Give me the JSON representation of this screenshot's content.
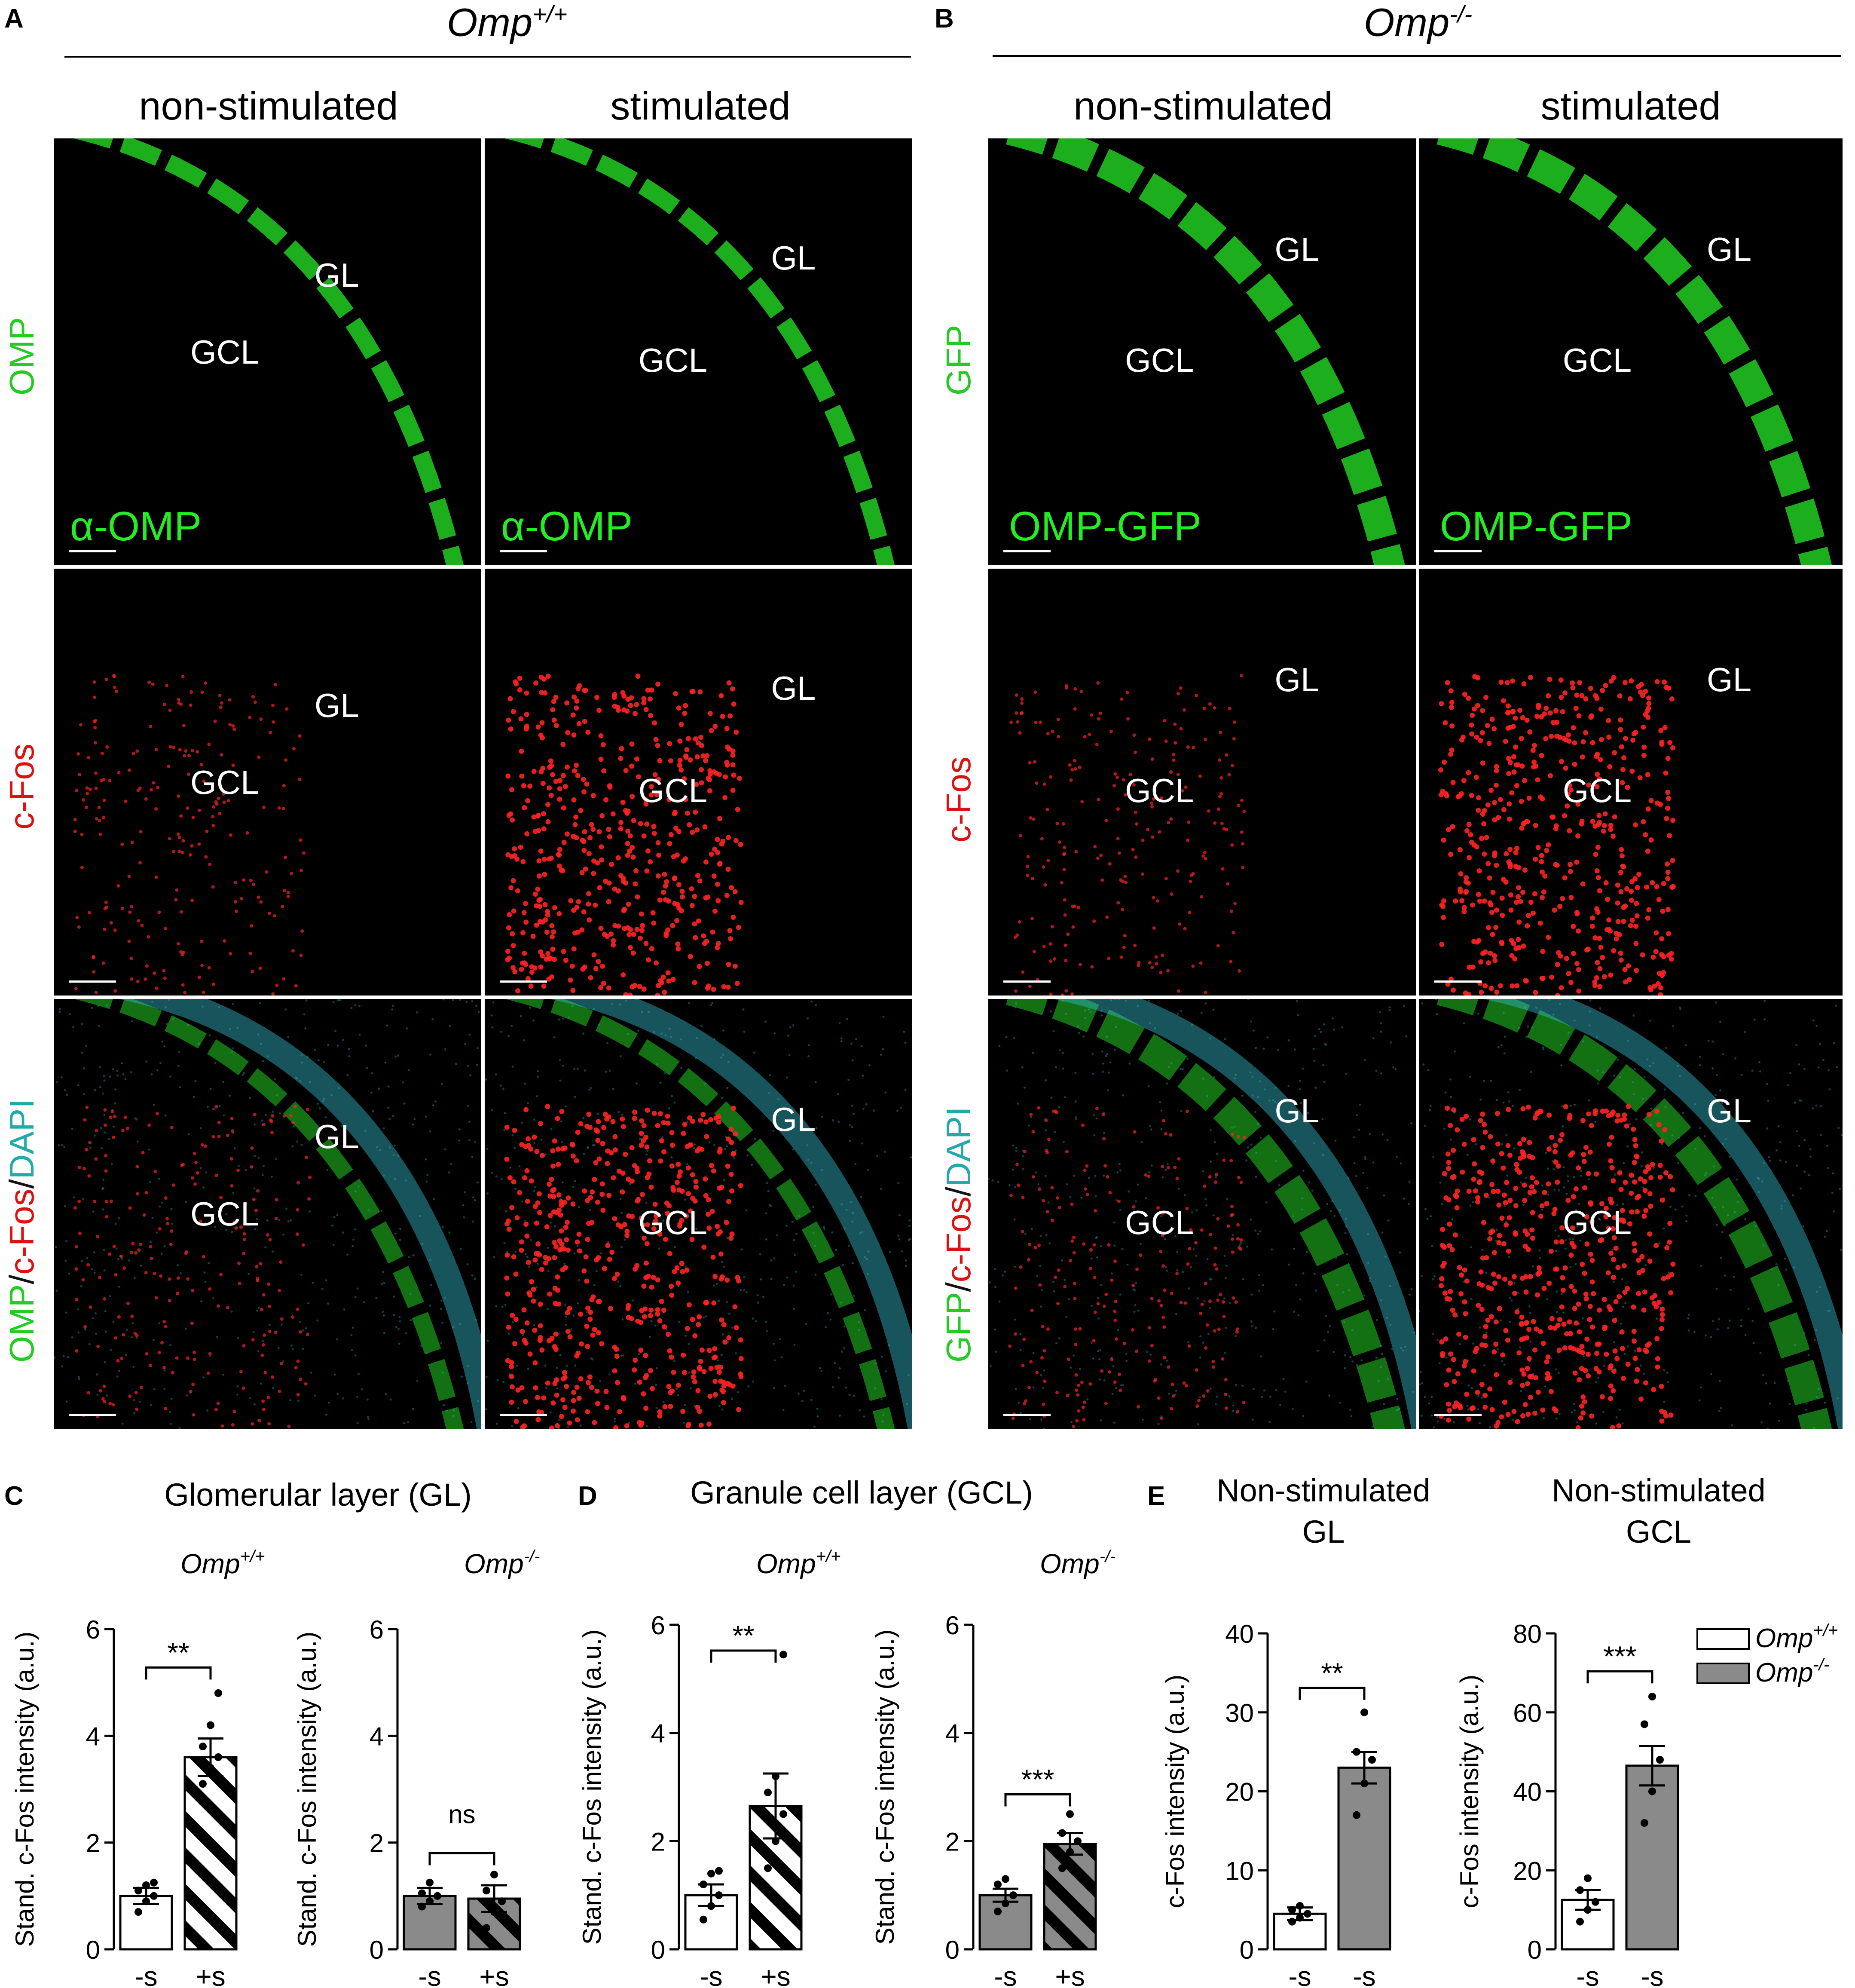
{
  "panel_letters": [
    "A",
    "B",
    "C",
    "D",
    "E"
  ],
  "panel_a": {
    "genotype": "Omp",
    "genotype_sup": "+/+",
    "col_titles": [
      "non-stimulated",
      "stimulated"
    ]
  },
  "panel_b": {
    "genotype": "Omp",
    "genotype_sup": "-/-",
    "col_titles": [
      "non-stimulated",
      "stimulated"
    ]
  },
  "row_labels_a": {
    "omp": "OMP",
    "cfos": "c-Fos",
    "merge_p1": "OMP",
    "merge_sep1": "/",
    "merge_p2": "c-Fos",
    "merge_sep2": "/",
    "merge_p3": "DAPI"
  },
  "row_labels_b": {
    "gfp": "GFP",
    "cfos": "c-Fos",
    "merge_p1": "GFP",
    "merge_sep1": "/",
    "merge_p2": "c-Fos",
    "merge_sep2": "/",
    "merge_p3": "DAPI"
  },
  "micro_labels": {
    "gl": "GL",
    "gcl": "GCL"
  },
  "micro_tags": {
    "a_omp": "α-OMP",
    "b_gfp": "OMP-GFP"
  },
  "colors": {
    "omp_green": "#22cc22",
    "cfos_red": "#ff2222",
    "dapi_cyan": "#33bbcc",
    "omp_ko_bar": "#8a8a8a"
  },
  "section_titles": {
    "c": "Glomerular layer (GL)",
    "d": "Granule cell layer (GCL)",
    "e1_l1": "Non-stimulated",
    "e1_l2": "GL",
    "e2_l1": "Non-stimulated",
    "e2_l2": "GCL"
  },
  "legend": [
    {
      "name": "Omp",
      "sup": "+/+",
      "fill": "#ffffff"
    },
    {
      "name": "Omp",
      "sup": "-/-",
      "fill": "#8a8a8a"
    }
  ],
  "chart_data": [
    {
      "panel": "C",
      "type": "bar",
      "title": "Omp+/+",
      "ylabel": "Stand. c-Fos intensity (a.u.)",
      "ylim": [
        0,
        6
      ],
      "yticks": [
        0,
        2,
        4,
        6
      ],
      "categories": [
        "-s",
        "+s"
      ],
      "values": [
        1.0,
        3.6
      ],
      "errors": [
        0.15,
        0.35
      ],
      "points": [
        [
          0.7,
          0.9,
          1.0,
          1.1,
          1.2,
          1.25
        ],
        [
          3.1,
          3.4,
          3.6,
          3.8,
          4.2,
          4.8
        ]
      ],
      "fill": [
        "white",
        "white-hatched"
      ],
      "significance": "**"
    },
    {
      "panel": "C",
      "type": "bar",
      "title": "Omp-/-",
      "ylabel": "Stand. c-Fos intensity (a.u.)",
      "ylim": [
        0,
        6
      ],
      "yticks": [
        0,
        2,
        4,
        6
      ],
      "categories": [
        "-s",
        "+s"
      ],
      "values": [
        1.0,
        0.95
      ],
      "errors": [
        0.15,
        0.25
      ],
      "points": [
        [
          0.8,
          0.9,
          1.0,
          1.05,
          1.25
        ],
        [
          0.4,
          0.7,
          0.9,
          1.1,
          1.4
        ]
      ],
      "fill": [
        "gray",
        "gray-hatched"
      ],
      "significance": "ns"
    },
    {
      "panel": "D",
      "type": "bar",
      "title": "Omp+/+",
      "ylabel": "Stand. c-Fos intensity (a.u.)",
      "ylim": [
        0,
        6
      ],
      "yticks": [
        0,
        2,
        4,
        6
      ],
      "categories": [
        "-s",
        "+s"
      ],
      "values": [
        1.0,
        2.65
      ],
      "errors": [
        0.2,
        0.6
      ],
      "points": [
        [
          0.55,
          0.8,
          1.0,
          1.2,
          1.4,
          1.45
        ],
        [
          1.5,
          2.0,
          2.5,
          2.9,
          3.2,
          5.45
        ]
      ],
      "fill": [
        "white",
        "white-hatched"
      ],
      "significance": "**"
    },
    {
      "panel": "D",
      "type": "bar",
      "title": "Omp-/-",
      "ylabel": "Stand. c-Fos intensity (a.u.)",
      "ylim": [
        0,
        6
      ],
      "yticks": [
        0,
        2,
        4,
        6
      ],
      "categories": [
        "-s",
        "+s"
      ],
      "values": [
        1.0,
        1.95
      ],
      "errors": [
        0.12,
        0.2
      ],
      "points": [
        [
          0.7,
          0.85,
          1.0,
          1.2,
          1.3
        ],
        [
          1.5,
          1.8,
          2.0,
          2.15,
          2.5
        ]
      ],
      "fill": [
        "gray",
        "gray-hatched"
      ],
      "significance": "***"
    },
    {
      "panel": "E",
      "type": "bar",
      "title": "Non-stimulated GL",
      "ylabel": "c-Fos intensity (a.u.)",
      "ylim": [
        0,
        40
      ],
      "yticks": [
        0,
        10,
        20,
        30,
        40
      ],
      "categories": [
        "-s",
        "-s"
      ],
      "values": [
        4.5,
        23
      ],
      "errors": [
        0.8,
        2.0
      ],
      "points": [
        [
          3.5,
          4.0,
          4.5,
          5.0,
          5.5
        ],
        [
          17,
          21,
          24,
          25,
          30
        ]
      ],
      "fill": [
        "white",
        "gray"
      ],
      "significance": "**"
    },
    {
      "panel": "E",
      "type": "bar",
      "title": "Non-stimulated GCL",
      "ylabel": "c-Fos intensity (a.u.)",
      "ylim": [
        0,
        80
      ],
      "yticks": [
        0,
        20,
        40,
        60,
        80
      ],
      "categories": [
        "-s",
        "-s"
      ],
      "values": [
        12.5,
        46.5
      ],
      "errors": [
        2.5,
        5.0
      ],
      "points": [
        [
          7,
          10,
          12,
          15,
          18
        ],
        [
          32,
          40,
          48,
          57,
          64
        ]
      ],
      "fill": [
        "white",
        "gray"
      ],
      "significance": "***"
    }
  ]
}
